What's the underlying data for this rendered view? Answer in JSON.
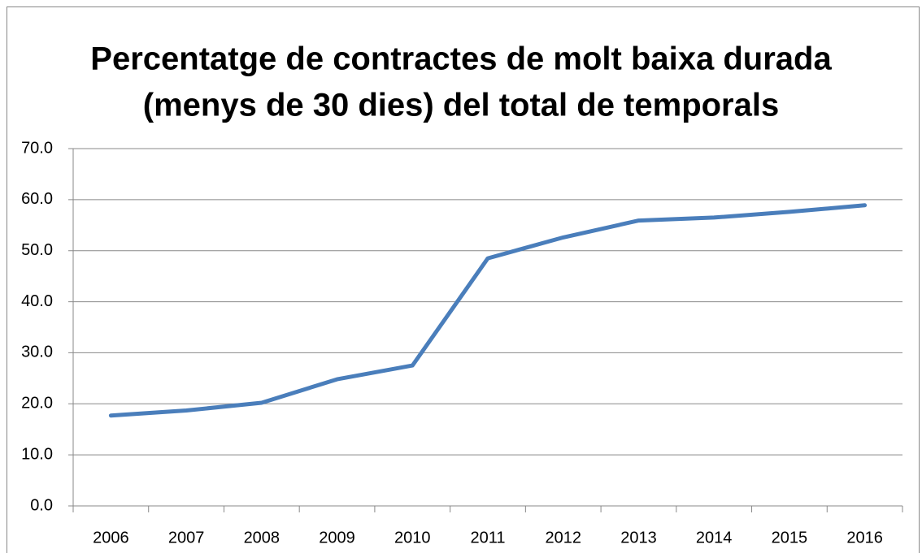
{
  "chart_data": {
    "type": "line",
    "title": [
      "Percentatge de contractes de molt baixa durada",
      "(menys de 30 dies) del total de temporals"
    ],
    "categories": [
      "2006",
      "2007",
      "2008",
      "2009",
      "2010",
      "2011",
      "2012",
      "2013",
      "2014",
      "2015",
      "2016"
    ],
    "values": [
      17.7,
      18.7,
      20.2,
      24.8,
      27.5,
      48.5,
      52.6,
      55.9,
      56.5,
      57.6,
      58.9
    ],
    "color": "#4a7ebb",
    "ylim": [
      0,
      70
    ],
    "yticks": [
      {
        "value": 0,
        "label": "0.0"
      },
      {
        "value": 10,
        "label": "10.0"
      },
      {
        "value": 20,
        "label": "20.0"
      },
      {
        "value": 30,
        "label": "30.0"
      },
      {
        "value": 40,
        "label": "40.0"
      },
      {
        "value": 50,
        "label": "50.0"
      },
      {
        "value": 60,
        "label": "60.0"
      },
      {
        "value": 70,
        "label": "70.0"
      }
    ],
    "grid": true
  }
}
